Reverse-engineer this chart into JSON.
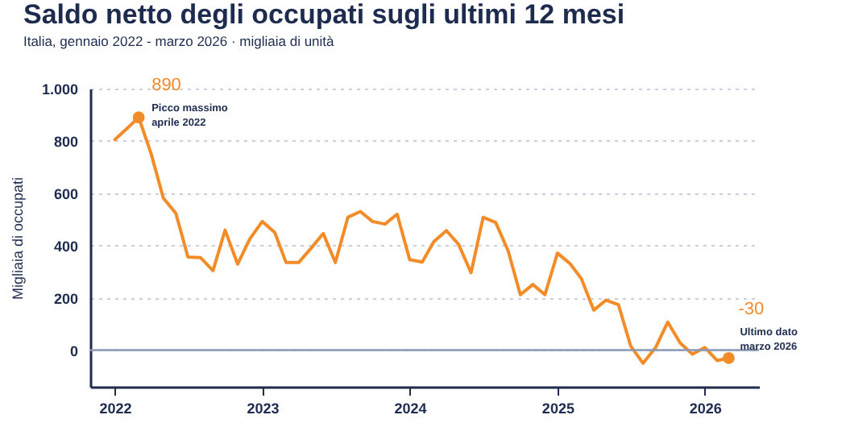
{
  "chart_data": {
    "type": "line",
    "title": "Saldo netto degli occupati sugli ultimi 12 mesi",
    "subtitle": "Italia, gennaio 2022 - marzo 2026 · migliaia di unità",
    "ylabel": "Migliaia di occupati",
    "x": [
      "2022-01",
      "2022-02",
      "2022-03",
      "2022-04",
      "2022-05",
      "2022-06",
      "2022-07",
      "2022-08",
      "2022-09",
      "2022-10",
      "2022-11",
      "2022-12",
      "2023-01",
      "2023-02",
      "2023-03",
      "2023-04",
      "2023-05",
      "2023-06",
      "2023-07",
      "2023-08",
      "2023-09",
      "2023-10",
      "2023-11",
      "2023-12",
      "2024-01",
      "2024-02",
      "2024-03",
      "2024-04",
      "2024-05",
      "2024-06",
      "2024-07",
      "2024-08",
      "2024-09",
      "2024-10",
      "2024-11",
      "2024-12",
      "2025-01",
      "2025-02",
      "2025-03",
      "2025-04",
      "2025-05",
      "2025-06",
      "2025-07",
      "2025-08",
      "2025-09",
      "2025-10",
      "2025-11",
      "2025-12",
      "2026-01",
      "2026-02",
      "2026-03"
    ],
    "series": [
      {
        "color": "#f28c28",
        "values": [
          805,
          849,
          890,
          750,
          582,
          523,
          356,
          354,
          304,
          459,
          329,
          425,
          492,
          450,
          335,
          335,
          388,
          446,
          335,
          508,
          530,
          492,
          482,
          520,
          346,
          337,
          415,
          457,
          405,
          296,
          508,
          488,
          379,
          212,
          251,
          212,
          371,
          331,
          274,
          153,
          191,
          174,
          17,
          -50,
          10,
          107,
          27,
          -15,
          10,
          -40,
          -30
        ]
      }
    ],
    "xlim": [
      "2021-11-01",
      "2026-05-15"
    ],
    "xticks": [
      "2022",
      "2023",
      "2024",
      "2025",
      "2026"
    ],
    "ylim": [
      -140,
      1000
    ],
    "yticks": [
      0,
      200,
      400,
      600,
      800,
      {
        "value": 1000,
        "label": "1.000"
      }
    ],
    "grid": "y",
    "marker": "none",
    "line_style": "solid",
    "ref_lines": [
      {
        "axis": "y",
        "value": 0,
        "color": "#8a99b4"
      }
    ],
    "annotations": [
      {
        "text": "890",
        "x": "2022-03",
        "y": 890
      },
      {
        "text": "Picco massimo\naprile 2022",
        "x": "2022-03",
        "y": 890
      },
      {
        "text": "-30",
        "x": "2026-03",
        "y": -30
      },
      {
        "text": "Ultimo dato\nmarzo 2026",
        "x": "2026-03",
        "y": -30
      }
    ]
  }
}
